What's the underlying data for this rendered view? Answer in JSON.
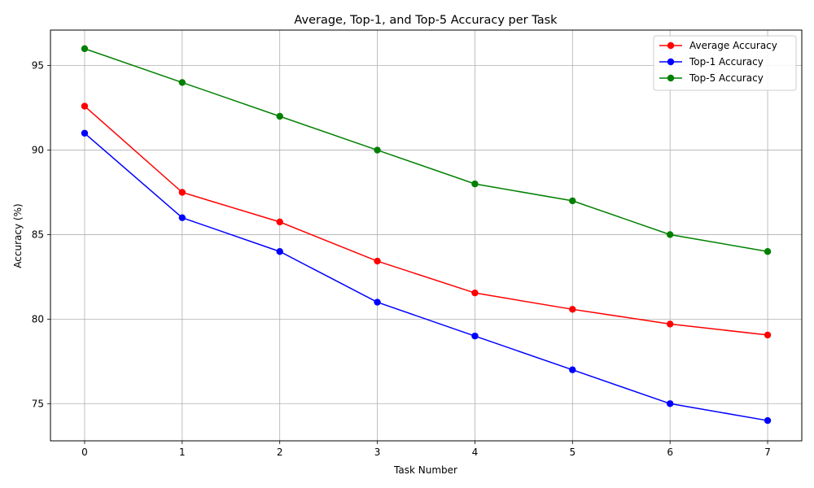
{
  "chart_data": {
    "type": "line",
    "title": "Average, Top-1, and Top-5 Accuracy per Task",
    "xlabel": "Task Number",
    "ylabel": "Accuracy (%)",
    "x": [
      0,
      1,
      2,
      3,
      4,
      5,
      6,
      7
    ],
    "x_ticks": [
      "0",
      "1",
      "2",
      "3",
      "4",
      "5",
      "6",
      "7"
    ],
    "y_ticks": [
      "75",
      "80",
      "85",
      "90",
      "95"
    ],
    "xlim": [
      -0.35,
      7.35
    ],
    "ylim": [
      72.8,
      97.1
    ],
    "grid": true,
    "legend_position": "top-right",
    "series": [
      {
        "name": "Average Accuracy",
        "color": "#ff0000",
        "marker": "circle",
        "values": [
          92.6,
          87.5,
          85.75,
          83.43,
          81.55,
          80.58,
          79.71,
          79.06
        ]
      },
      {
        "name": "Top-1 Accuracy",
        "color": "#0000ff",
        "marker": "circle",
        "values": [
          91,
          86,
          84,
          81,
          79,
          77,
          75,
          74
        ]
      },
      {
        "name": "Top-5 Accuracy",
        "color": "#008000",
        "marker": "circle",
        "values": [
          96,
          94,
          92,
          90,
          88,
          87,
          85,
          84
        ]
      }
    ]
  }
}
